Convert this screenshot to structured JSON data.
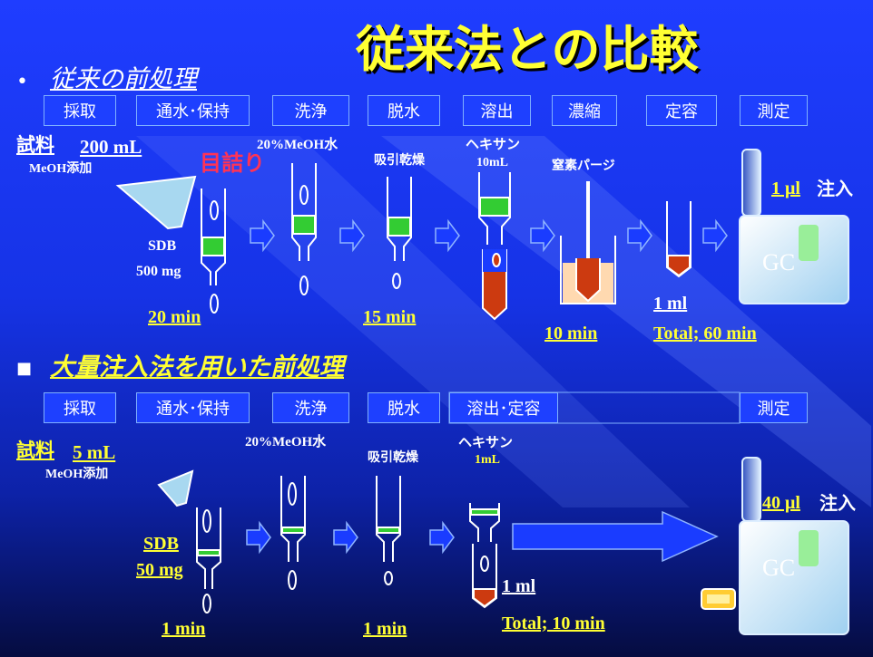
{
  "title": "従来法との比較",
  "conventional": {
    "heading": "従来の前処理",
    "steps": [
      "採取",
      "通水･保持",
      "洗浄",
      "脱水",
      "溶出",
      "濃縮",
      "定容",
      "測定"
    ],
    "sample": "試料",
    "sample_volume": "200 mL",
    "additive": "MeOH添加",
    "clogging": "目詰り",
    "wash": "20%MeOH水",
    "dry": "吸引乾燥",
    "solvent": "ヘキサン",
    "solvent_volume": "10mL",
    "purge": "窒素パージ",
    "injection_volume": "1 μl",
    "injection": "注入",
    "sorbent": "SDB",
    "sorbent_mass": "500 mg",
    "instrument": "GC",
    "time_load": "20 min",
    "time_dry": "15 min",
    "time_purge": "10 min",
    "final_volume": "1 ml",
    "total": "Total; 60 min"
  },
  "large_volume": {
    "heading": "大量注入法を用いた前処理",
    "steps": [
      "採取",
      "通水･保持",
      "洗浄",
      "脱水",
      "溶出･定容",
      "測定"
    ],
    "sample": "試料",
    "sample_volume": "5 mL",
    "additive": "MeOH添加",
    "wash": "20%MeOH水",
    "dry": "吸引乾燥",
    "solvent": "ヘキサン",
    "solvent_volume": "1mL",
    "injection_volume": "40 μl",
    "injection": "注入",
    "sorbent": "SDB",
    "sorbent_mass": "50 mg",
    "instrument": "GC",
    "time_load": "1 min",
    "time_dry": "1 min",
    "final_volume": "1 ml",
    "total": "Total; 10 min"
  }
}
